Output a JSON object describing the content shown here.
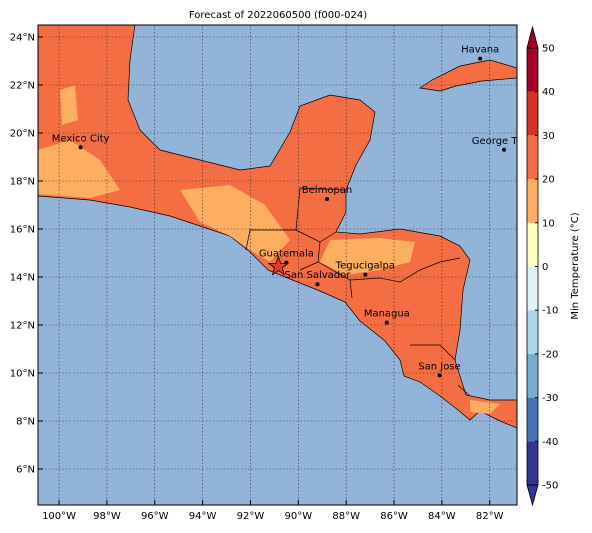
{
  "title": "Forecast of 2022060500 (f000-024)",
  "lon_range": [
    -100.88,
    -80.86
  ],
  "lat_range": [
    4.5,
    24.5
  ],
  "lon_ticks": [
    {
      "value": -100,
      "label": "100°W"
    },
    {
      "value": -98,
      "label": "98°W"
    },
    {
      "value": -96,
      "label": "96°W"
    },
    {
      "value": -94,
      "label": "94°W"
    },
    {
      "value": -92,
      "label": "92°W"
    },
    {
      "value": -90,
      "label": "90°W"
    },
    {
      "value": -88,
      "label": "88°W"
    },
    {
      "value": -86,
      "label": "86°W"
    },
    {
      "value": -84,
      "label": "84°W"
    },
    {
      "value": -82,
      "label": "82°W"
    }
  ],
  "lat_ticks": [
    {
      "value": 6,
      "label": "6°N"
    },
    {
      "value": 8,
      "label": "8°N"
    },
    {
      "value": 10,
      "label": "10°N"
    },
    {
      "value": 12,
      "label": "12°N"
    },
    {
      "value": 14,
      "label": "14°N"
    },
    {
      "value": 16,
      "label": "16°N"
    },
    {
      "value": 18,
      "label": "18°N"
    },
    {
      "value": 20,
      "label": "20°N"
    },
    {
      "value": 22,
      "label": "22°N"
    },
    {
      "value": 24,
      "label": "24°N"
    }
  ],
  "cities": [
    {
      "name": "Mexico City",
      "lon": -99.1,
      "lat": 19.4
    },
    {
      "name": "Havana",
      "lon": -82.4,
      "lat": 23.1
    },
    {
      "name": "George Town",
      "lon": -81.4,
      "lat": 19.3
    },
    {
      "name": "Belmopan",
      "lon": -88.8,
      "lat": 17.25
    },
    {
      "name": "Guatemala",
      "lon": -90.5,
      "lat": 14.6
    },
    {
      "name": "Tegucigalpa",
      "lon": -87.2,
      "lat": 14.1
    },
    {
      "name": "San Salvador",
      "lon": -89.2,
      "lat": 13.7
    },
    {
      "name": "Managua",
      "lon": -86.3,
      "lat": 12.1
    },
    {
      "name": "San Jose",
      "lon": -84.1,
      "lat": 9.9
    }
  ],
  "colorbar": {
    "label": "Min Temperature (°C)",
    "range": [
      -50,
      50
    ],
    "ticks": [
      -50,
      -40,
      -30,
      -20,
      -10,
      0,
      10,
      20,
      30,
      40,
      50
    ],
    "colors": [
      "#313695",
      "#4575b4",
      "#74add1",
      "#abd9e9",
      "#e0f3f8",
      "#ffffbf",
      "#fdae61",
      "#f46d43",
      "#d73027",
      "#a50026"
    ]
  }
}
